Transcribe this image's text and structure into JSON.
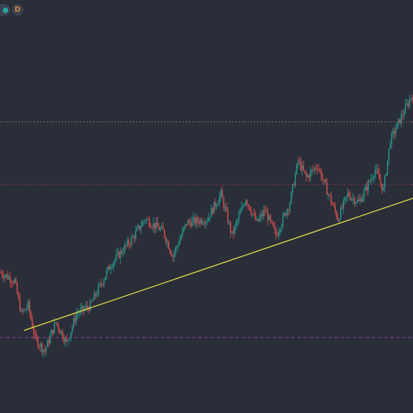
{
  "header": {
    "interval_label": "D",
    "status_color": "#26a69a",
    "interval_color": "#f0933b",
    "status-icon": "circle-dot"
  },
  "colors": {
    "background": "#2a2e39",
    "up_candle": "#26a69a",
    "down_candle": "#ef5350",
    "trendline": "#d8d346",
    "resistance_upper": "#b58a93",
    "resistance_mid": "#b04563",
    "support_line": "#8a3fa3"
  },
  "chart_data": {
    "type": "candlestick",
    "y_range": [
      0,
      100
    ],
    "candle_count": 300,
    "trend_path": [
      [
        0,
        34
      ],
      [
        10,
        32
      ],
      [
        15,
        24
      ],
      [
        20,
        26
      ],
      [
        25,
        18
      ],
      [
        32,
        15
      ],
      [
        40,
        22
      ],
      [
        48,
        17
      ],
      [
        55,
        24
      ],
      [
        65,
        26
      ],
      [
        80,
        36
      ],
      [
        95,
        42
      ],
      [
        105,
        47
      ],
      [
        118,
        44
      ],
      [
        125,
        38
      ],
      [
        135,
        46
      ],
      [
        150,
        47
      ],
      [
        160,
        53
      ],
      [
        168,
        43
      ],
      [
        178,
        52
      ],
      [
        186,
        46
      ],
      [
        192,
        49
      ],
      [
        200,
        43
      ],
      [
        210,
        51
      ],
      [
        216,
        61
      ],
      [
        222,
        57
      ],
      [
        230,
        60
      ],
      [
        238,
        53
      ],
      [
        245,
        47
      ],
      [
        252,
        53
      ],
      [
        260,
        51
      ],
      [
        265,
        54
      ],
      [
        272,
        59
      ],
      [
        278,
        54
      ],
      [
        283,
        66
      ],
      [
        300,
        78
      ]
    ],
    "trendline": {
      "start": [
        17,
        20
      ],
      "end": [
        300,
        52
      ]
    },
    "horizontal_lines": [
      {
        "name": "upper-resistance",
        "level": 70.5,
        "style": "dotted"
      },
      {
        "name": "mid-resistance",
        "level": 55.3,
        "style": "dotted"
      },
      {
        "name": "support",
        "level": 18.3,
        "style": "dashed"
      }
    ]
  }
}
